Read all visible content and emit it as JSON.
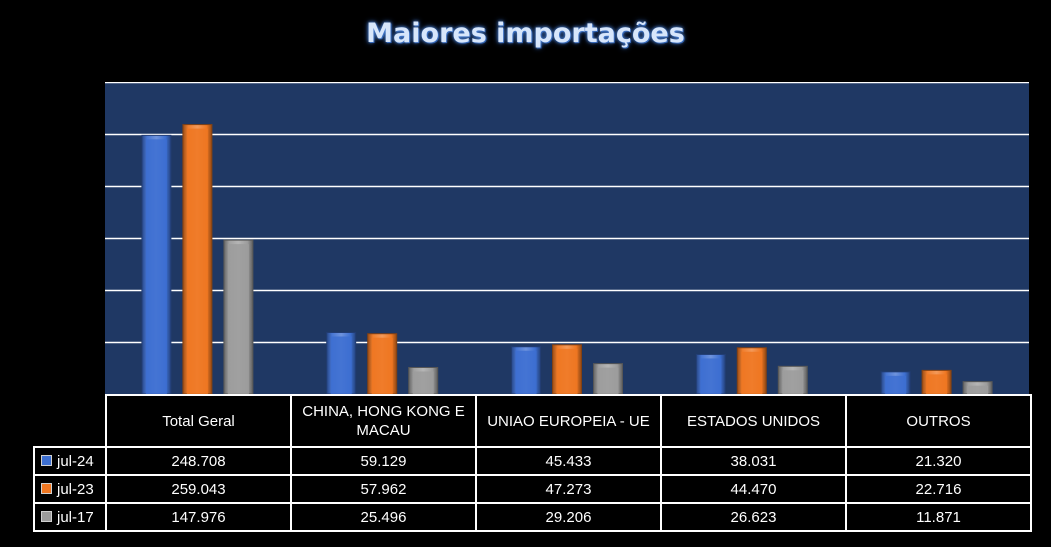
{
  "chart_data": {
    "type": "bar",
    "title": "Maiores importações",
    "categories": [
      "Total Geral",
      "CHINA, HONG KONG E MACAU",
      "UNIAO EUROPEIA - UE",
      "ESTADOS UNIDOS",
      "OUTROS"
    ],
    "category_labels_display": [
      "Total Geral",
      "CHINA, HONG KONG E\nMACAU",
      "UNIAO EUROPEIA - UE",
      "ESTADOS UNIDOS",
      "OUTROS"
    ],
    "series": [
      {
        "name": "jul-24",
        "color": "#3d6fd1",
        "values": [
          248708,
          59129,
          45433,
          38031,
          21320
        ],
        "labels": [
          "248.708",
          "59.129",
          "45.433",
          "38.031",
          "21.320"
        ]
      },
      {
        "name": "jul-23",
        "color": "#ef7722",
        "values": [
          259043,
          57962,
          47273,
          44470,
          22716
        ],
        "labels": [
          "259.043",
          "57.962",
          "47.273",
          "44.470",
          "22.716"
        ]
      },
      {
        "name": "jul-17",
        "color": "#9c9c9c",
        "values": [
          147976,
          25496,
          29206,
          26623,
          11871
        ],
        "labels": [
          "147.976",
          "25.496",
          "29.206",
          "26.623",
          "11.871"
        ]
      }
    ],
    "ylim": [
      0,
      300000
    ],
    "grid": true,
    "legend": "data-table",
    "plot_background": "#1f3864",
    "gridline_color": "#ffffff"
  }
}
